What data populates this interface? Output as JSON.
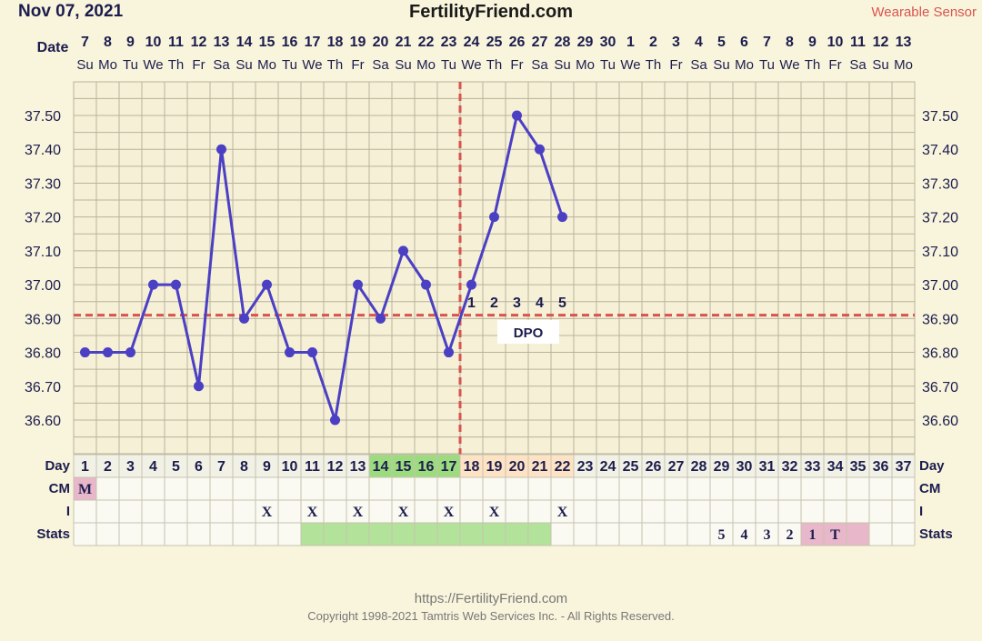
{
  "header": {
    "date": "Nov 07, 2021",
    "site": "FertilityFriend.com",
    "sensor": "Wearable Sensor"
  },
  "footer": {
    "url": "https://FertilityFriend.com",
    "copyright": "Copyright 1998-2021 Tamtris Web Services Inc. - All Rights Reserved."
  },
  "chart_data": {
    "type": "line",
    "date_label": "Date",
    "dates": [
      "7",
      "8",
      "9",
      "10",
      "11",
      "12",
      "13",
      "14",
      "15",
      "16",
      "17",
      "18",
      "19",
      "20",
      "21",
      "22",
      "23",
      "24",
      "25",
      "26",
      "27",
      "28",
      "29",
      "30",
      "1",
      "2",
      "3",
      "4",
      "5",
      "6",
      "7",
      "8",
      "9",
      "10",
      "11",
      "12",
      "13"
    ],
    "weekdays": [
      "Su",
      "Mo",
      "Tu",
      "We",
      "Th",
      "Fr",
      "Sa",
      "Su",
      "Mo",
      "Tu",
      "We",
      "Th",
      "Fr",
      "Sa",
      "Su",
      "Mo",
      "Tu",
      "We",
      "Th",
      "Fr",
      "Sa",
      "Su",
      "Mo",
      "Tu",
      "We",
      "Th",
      "Fr",
      "Sa",
      "Su",
      "Mo",
      "Tu",
      "We",
      "Th",
      "Fr",
      "Sa",
      "Su",
      "Mo"
    ],
    "cycle_days": [
      1,
      2,
      3,
      4,
      5,
      6,
      7,
      8,
      9,
      10,
      11,
      12,
      13,
      14,
      15,
      16,
      17,
      18,
      19,
      20,
      21,
      22,
      23,
      24,
      25,
      26,
      27,
      28,
      29,
      30,
      31,
      32,
      33,
      34,
      35,
      36,
      37
    ],
    "temperatures": [
      36.8,
      36.8,
      36.8,
      37.0,
      37.0,
      36.7,
      37.4,
      36.9,
      37.0,
      36.8,
      36.8,
      36.6,
      37.0,
      36.9,
      37.1,
      37.0,
      36.8,
      37.0,
      37.2,
      37.5,
      37.4,
      37.2,
      null,
      null,
      null,
      null,
      null,
      null,
      null,
      null,
      null,
      null,
      null,
      null,
      null,
      null,
      null
    ],
    "y_ticks": [
      "37.50",
      "37.40",
      "37.30",
      "37.20",
      "37.10",
      "37.00",
      "36.90",
      "36.80",
      "36.70",
      "36.60"
    ],
    "ylim": [
      36.52,
      37.62
    ],
    "coverline": 36.91,
    "ovulation_day": 17,
    "dpo_label": "DPO",
    "dpo_numbers": [
      "1",
      "2",
      "3",
      "4",
      "5"
    ],
    "fertile_days": [
      14,
      15,
      16,
      17
    ],
    "luteal_days": [
      18,
      19,
      20,
      21,
      22
    ],
    "row_labels": {
      "day": "Day",
      "cm": "CM",
      "i": "I",
      "stats": "Stats"
    },
    "cm": [
      {
        "day": 1,
        "value": "M"
      }
    ],
    "i_marks": [
      {
        "day": 9,
        "value": "X"
      },
      {
        "day": 11,
        "value": "X"
      },
      {
        "day": 13,
        "value": "X"
      },
      {
        "day": 15,
        "value": "X"
      },
      {
        "day": 17,
        "value": "X"
      },
      {
        "day": 19,
        "value": "X"
      },
      {
        "day": 22,
        "value": "X"
      }
    ],
    "stats_green_days": [
      11,
      12,
      13,
      14,
      15,
      16,
      17,
      18,
      19,
      20,
      21
    ],
    "stats_values": [
      {
        "day": 29,
        "value": "5"
      },
      {
        "day": 30,
        "value": "4"
      },
      {
        "day": 31,
        "value": "3"
      },
      {
        "day": 32,
        "value": "2"
      },
      {
        "day": 33,
        "value": "1"
      },
      {
        "day": 34,
        "value": "T"
      }
    ],
    "stats_pink_days": [
      33,
      34,
      35
    ],
    "colors": {
      "line": "#4b3fc4",
      "coverline": "#d9534f",
      "fertile": "#9ddb7f",
      "luteal": "#fde3c3",
      "stats_green": "#b3e29a",
      "pink": "#e8b7c9",
      "grid": "#b9b39c",
      "text": "#1c1c4e"
    }
  }
}
